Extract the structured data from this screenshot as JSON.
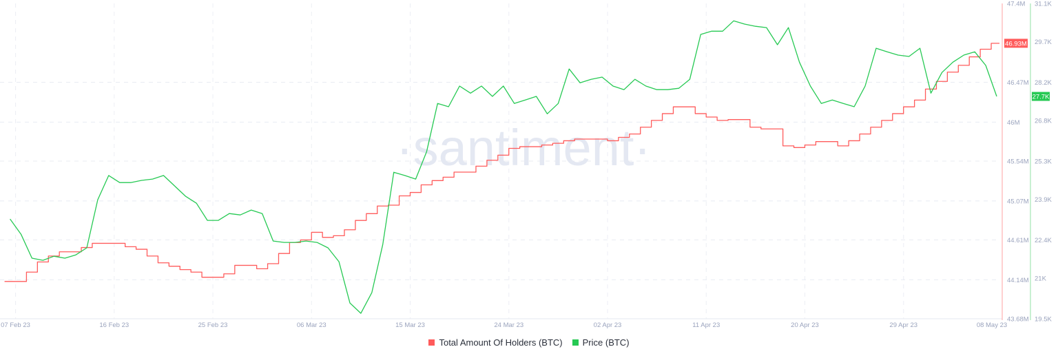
{
  "watermark": "·santiment·",
  "colors": {
    "holders": "#ff5b5b",
    "price": "#26c953"
  },
  "chart_data": {
    "type": "line",
    "title": "",
    "xlabel": "",
    "x_ticks": [
      "07 Feb 23",
      "16 Feb 23",
      "25 Feb 23",
      "06 Mar 23",
      "15 Mar 23",
      "24 Mar 23",
      "02 Apr 23",
      "11 Apr 23",
      "20 Apr 23",
      "29 Apr 23",
      "08 May 23"
    ],
    "x_range": [
      "2023-02-05",
      "2023-05-08"
    ],
    "grid": true,
    "legend_position": "bottom",
    "y_axes": [
      {
        "series": "Total Amount Of Holders (BTC)",
        "unit": "M",
        "range": [
          43.68,
          47.4
        ],
        "tick_labels": [
          "47.4M",
          "46.47M",
          "46M",
          "45.54M",
          "45.07M",
          "44.61M",
          "44.14M",
          "43.68M"
        ],
        "current_label": "46.93M"
      },
      {
        "series": "Price (BTC)",
        "unit": "K",
        "range": [
          19.5,
          31.1
        ],
        "tick_labels": [
          "31.1K",
          "29.7K",
          "28.2K",
          "26.8K",
          "25.3K",
          "23.9K",
          "22.4K",
          "21K",
          "19.5K"
        ],
        "current_label": "27.7K"
      }
    ],
    "dates": [
      "2023-02-06",
      "2023-02-07",
      "2023-02-08",
      "2023-02-09",
      "2023-02-10",
      "2023-02-11",
      "2023-02-12",
      "2023-02-13",
      "2023-02-14",
      "2023-02-15",
      "2023-02-16",
      "2023-02-17",
      "2023-02-18",
      "2023-02-19",
      "2023-02-20",
      "2023-02-21",
      "2023-02-22",
      "2023-02-23",
      "2023-02-24",
      "2023-02-25",
      "2023-02-26",
      "2023-02-27",
      "2023-02-28",
      "2023-03-01",
      "2023-03-02",
      "2023-03-03",
      "2023-03-04",
      "2023-03-05",
      "2023-03-06",
      "2023-03-07",
      "2023-03-08",
      "2023-03-09",
      "2023-03-10",
      "2023-03-11",
      "2023-03-12",
      "2023-03-13",
      "2023-03-14",
      "2023-03-15",
      "2023-03-16",
      "2023-03-17",
      "2023-03-18",
      "2023-03-19",
      "2023-03-20",
      "2023-03-21",
      "2023-03-22",
      "2023-03-23",
      "2023-03-24",
      "2023-03-25",
      "2023-03-26",
      "2023-03-27",
      "2023-03-28",
      "2023-03-29",
      "2023-03-30",
      "2023-03-31",
      "2023-04-01",
      "2023-04-02",
      "2023-04-03",
      "2023-04-04",
      "2023-04-05",
      "2023-04-06",
      "2023-04-07",
      "2023-04-08",
      "2023-04-09",
      "2023-04-10",
      "2023-04-11",
      "2023-04-12",
      "2023-04-13",
      "2023-04-14",
      "2023-04-15",
      "2023-04-16",
      "2023-04-17",
      "2023-04-18",
      "2023-04-19",
      "2023-04-20",
      "2023-04-21",
      "2023-04-22",
      "2023-04-23",
      "2023-04-24",
      "2023-04-25",
      "2023-04-26",
      "2023-04-27",
      "2023-04-28",
      "2023-04-29",
      "2023-04-30",
      "2023-05-01",
      "2023-05-02",
      "2023-05-03",
      "2023-05-04",
      "2023-05-05",
      "2023-05-06",
      "2023-05-07"
    ],
    "series": [
      {
        "name": "Total Amount Of Holders (BTC)",
        "unit": "M",
        "axis": 0,
        "values": [
          44.12,
          44.12,
          44.23,
          44.35,
          44.42,
          44.47,
          44.47,
          44.52,
          44.57,
          44.57,
          44.57,
          44.53,
          44.5,
          44.42,
          44.34,
          44.3,
          44.26,
          44.23,
          44.17,
          44.17,
          44.21,
          44.31,
          44.31,
          44.27,
          44.33,
          44.45,
          44.58,
          44.61,
          44.7,
          44.64,
          44.66,
          44.73,
          44.84,
          44.92,
          45.01,
          45.02,
          45.13,
          45.17,
          45.26,
          45.31,
          45.35,
          45.41,
          45.41,
          45.48,
          45.55,
          45.61,
          45.69,
          45.71,
          45.71,
          45.73,
          45.75,
          45.78,
          45.8,
          45.8,
          45.8,
          45.78,
          45.82,
          45.86,
          45.94,
          46.02,
          46.1,
          46.18,
          46.18,
          46.1,
          46.06,
          46.02,
          46.03,
          46.03,
          45.94,
          45.92,
          45.92,
          45.72,
          45.7,
          45.73,
          45.77,
          45.77,
          45.72,
          45.78,
          45.86,
          45.94,
          46.02,
          46.1,
          46.18,
          46.26,
          46.39,
          46.48,
          46.59,
          46.67,
          46.77,
          46.86,
          46.93
        ]
      },
      {
        "name": "Price (BTC)",
        "unit": "K",
        "axis": 1,
        "values": [
          23.17,
          22.61,
          21.73,
          21.65,
          21.8,
          21.73,
          21.85,
          22.11,
          23.88,
          24.77,
          24.51,
          24.51,
          24.59,
          24.64,
          24.77,
          24.39,
          24.01,
          23.75,
          23.12,
          23.12,
          23.37,
          23.32,
          23.5,
          23.37,
          22.36,
          22.31,
          22.31,
          22.36,
          22.31,
          22.11,
          21.6,
          20.08,
          19.7,
          20.46,
          22.23,
          24.89,
          24.77,
          24.64,
          25.65,
          27.42,
          27.3,
          28.06,
          27.8,
          28.06,
          27.68,
          28.06,
          27.42,
          27.55,
          27.68,
          27.04,
          27.42,
          28.69,
          28.18,
          28.31,
          28.39,
          28.06,
          27.93,
          28.31,
          28.06,
          27.93,
          27.93,
          27.98,
          28.31,
          29.96,
          30.08,
          30.08,
          30.46,
          30.34,
          30.26,
          30.21,
          29.58,
          30.21,
          28.94,
          28.06,
          27.42,
          27.55,
          27.42,
          27.3,
          28.06,
          29.45,
          29.32,
          29.2,
          29.15,
          29.45,
          27.8,
          28.56,
          28.94,
          29.2,
          29.32,
          28.82,
          27.68
        ]
      }
    ]
  }
}
